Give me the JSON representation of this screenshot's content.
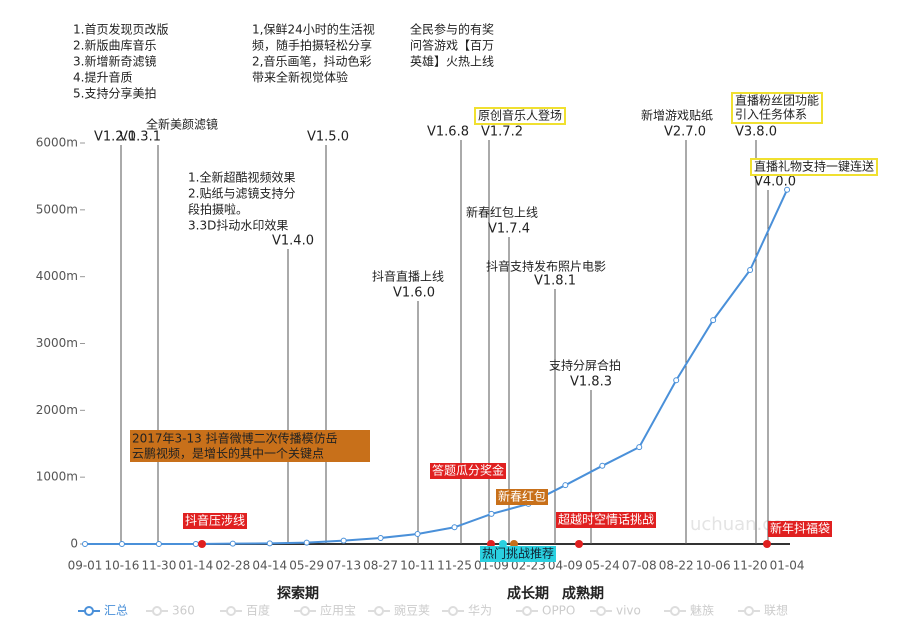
{
  "chart_data": {
    "type": "line",
    "categories": [
      "09-01",
      "10-16",
      "11-30",
      "01-14",
      "02-28",
      "04-14",
      "05-29",
      "07-13",
      "08-27",
      "10-11",
      "11-25",
      "01-09",
      "02-23",
      "04-09",
      "05-24",
      "07-08",
      "08-22",
      "10-06",
      "11-20",
      "01-04"
    ],
    "series": [
      {
        "name": "汇总",
        "color": "#4a90d9",
        "values": [
          0,
          0,
          0,
          0,
          5,
          10,
          20,
          50,
          90,
          150,
          250,
          450,
          600,
          880,
          1170,
          1450,
          2450,
          3350,
          4100,
          5300
        ]
      }
    ],
    "inactive_series": [
      "360",
      "百度",
      "应用宝",
      "豌豆荚",
      "华为",
      "OPPO",
      "vivo",
      "魅族",
      "联想"
    ],
    "ylim": [
      0,
      6000
    ],
    "yticks": [
      0,
      {
        "value": 1000,
        "label": "1000m"
      },
      {
        "value": 2000,
        "label": "2000m"
      },
      {
        "value": 3000,
        "label": "3000m"
      },
      {
        "value": 4000,
        "label": "4000m"
      },
      {
        "value": 5000,
        "label": "5000m"
      },
      {
        "value": 6000,
        "label": "6000m"
      }
    ],
    "grid": false,
    "top_notes": [
      [
        "1.首页发现页改版",
        "2.新版曲库音乐",
        "3.新增新奇滤镜",
        "4.提升音质",
        "5.支持分享美拍"
      ],
      [
        "1,保鲜24小时的生活视",
        "频，随手拍摄轻松分享",
        "2,音乐画笔，抖动色彩",
        "带来全新视觉体验"
      ],
      [
        "全民参与的有奖",
        "问答游戏【百万",
        "英雄】火热上线"
      ]
    ],
    "versions": [
      {
        "label": "V1.2.0"
      },
      {
        "label": "V1.3.1",
        "note": [
          "全新美颜滤镜"
        ]
      },
      {
        "label": "V1.5.0"
      },
      {
        "label": "V1.6.8"
      },
      {
        "label": "V1.7.2",
        "note": [
          "原创音乐人登场"
        ],
        "highlight": true
      },
      {
        "label": "V2.7.0",
        "note": [
          "新增游戏贴纸"
        ]
      },
      {
        "label": "V3.8.0",
        "note": [
          "直播粉丝团功能",
          "引入任务体系"
        ],
        "highlight": true
      },
      {
        "label": "V4.0.0",
        "note": [
          "直播礼物支持一键连送"
        ],
        "highlight": true
      },
      {
        "label": "V1.4.0",
        "note": [
          "1.全新超酷视频效果",
          "2.贴纸与滤镜支持分",
          "段拍摄啦。",
          "3.3D抖动水印效果"
        ]
      },
      {
        "label": "V1.6.0",
        "note": [
          "抖音直播上线"
        ]
      },
      {
        "label": "V1.7.4",
        "note": [
          "新春红包上线"
        ]
      },
      {
        "label": "V1.8.1",
        "note": [
          "抖音支持发布照片电影"
        ]
      },
      {
        "label": "V1.8.3",
        "note": [
          "支持分屏合拍"
        ]
      }
    ],
    "events": [
      {
        "label": "抖音压涉线",
        "color": "#e02020"
      },
      {
        "label": "答题瓜分奖金",
        "color": "#e02020"
      },
      {
        "label": "新春红包",
        "color": "#c8701a"
      },
      {
        "label": "热门挑战推荐",
        "color": "#2ad0e0"
      },
      {
        "label": "超越时空情话挑战",
        "color": "#e02020"
      },
      {
        "label": "新年抖福袋",
        "color": "#e02020"
      }
    ],
    "key_note": [
      "2017年3-13  抖音微博二次传播模仿岳",
      "云鹏视频，是增长的其中一个关键点"
    ],
    "phases": [
      "探索期",
      "成长期",
      "成熟期"
    ],
    "watermark": "uchuan.com"
  }
}
